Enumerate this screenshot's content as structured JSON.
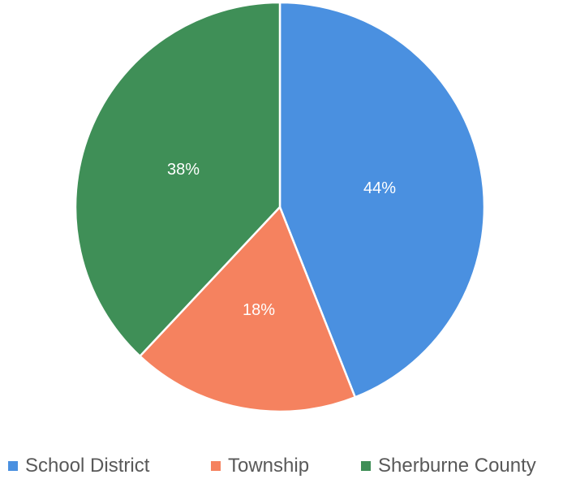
{
  "chart_data": {
    "type": "pie",
    "categories": [
      "School District",
      "Township",
      "Sherburne County"
    ],
    "values": [
      44,
      18,
      38
    ],
    "labels": [
      "44%",
      "18%",
      "38%"
    ],
    "colors": [
      "#4a90e0",
      "#f5825f",
      "#3f8f57"
    ],
    "title": "",
    "legend_position": "bottom"
  }
}
